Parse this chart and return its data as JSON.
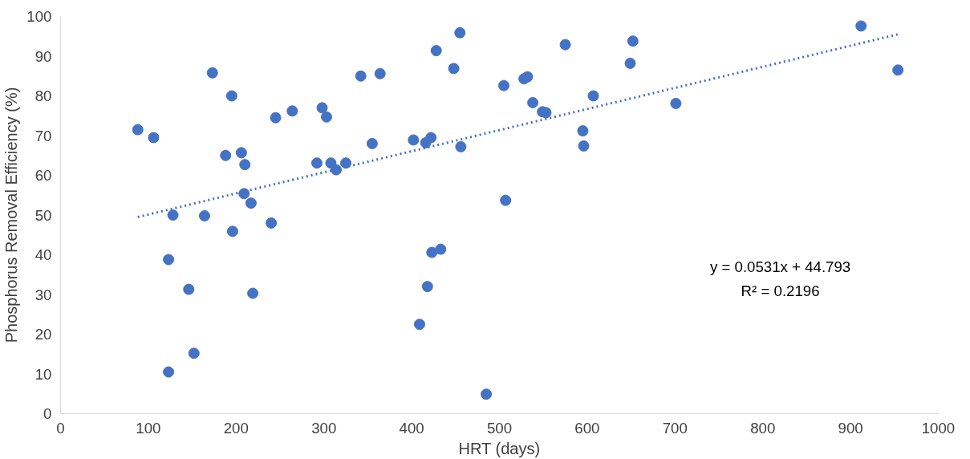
{
  "chart_data": {
    "type": "scatter",
    "xlabel": "HRT (days)",
    "ylabel": "Phosphorus Removal Efficiency (%)",
    "xlim": [
      0,
      1000
    ],
    "ylim": [
      0,
      100
    ],
    "xticks": [
      0,
      100,
      200,
      300,
      400,
      500,
      600,
      700,
      800,
      900,
      1000
    ],
    "yticks": [
      0,
      10,
      20,
      30,
      40,
      50,
      60,
      70,
      80,
      90,
      100
    ],
    "grid": false,
    "marker": "circle",
    "annotations": [
      "y = 0.0531x + 44.793",
      "R² = 0.2196"
    ],
    "series": [
      {
        "color": "#4472c4",
        "x": [
          88,
          106,
          123,
          123,
          128,
          146,
          152,
          164,
          173,
          188,
          195,
          196,
          206,
          210,
          209,
          217,
          219,
          240,
          245,
          264,
          292,
          298,
          303,
          308,
          314,
          325,
          342,
          355,
          364,
          402,
          409,
          416,
          418,
          422,
          423,
          428,
          433,
          448,
          455,
          456,
          485,
          505,
          507,
          528,
          532,
          538,
          549,
          553,
          575,
          595,
          596,
          607,
          649,
          652,
          701,
          912,
          954
        ],
        "values": [
          71.5,
          69.5,
          38.8,
          10.5,
          50,
          31.3,
          15.2,
          49.8,
          85.8,
          65,
          80,
          45.9,
          65.7,
          62.7,
          55.4,
          53,
          30.3,
          48,
          74.5,
          76.2,
          63.1,
          77,
          74.7,
          63.1,
          61.4,
          63.1,
          85,
          68,
          85.6,
          68.9,
          22.5,
          68.2,
          32,
          69.5,
          40.6,
          91.4,
          41.4,
          86.9,
          95.9,
          67.2,
          4.9,
          82.6,
          53.7,
          84.3,
          84.8,
          78.3,
          76,
          75.8,
          92.9,
          71.2,
          67.4,
          80,
          88.2,
          93.8,
          78.1,
          97.6,
          86.5
        ]
      },
      {
        "type": "line",
        "color": "#4472c4",
        "line_style": "dotted",
        "marker": "none",
        "x": [
          88,
          954
        ],
        "values": [
          49.5,
          95.5
        ]
      }
    ]
  }
}
